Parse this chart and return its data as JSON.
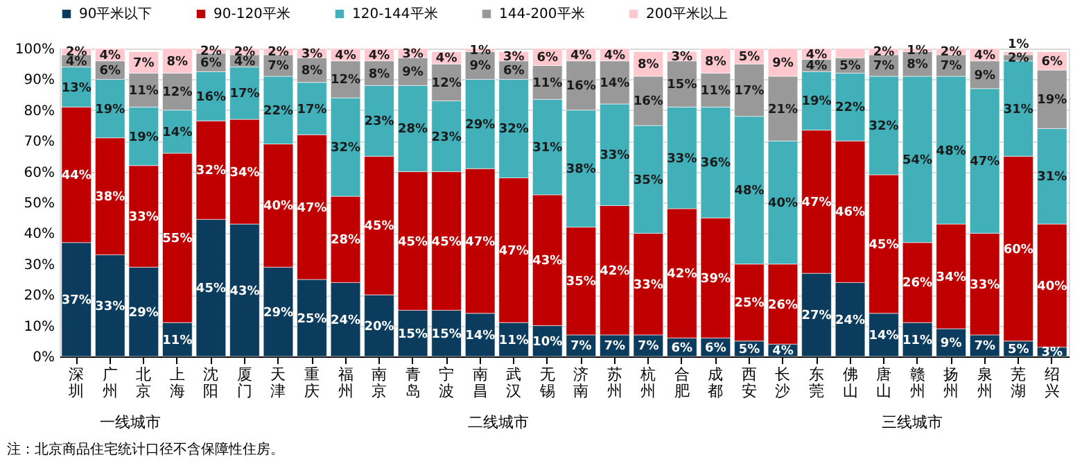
{
  "chart_data": {
    "type": "bar",
    "stacked": true,
    "legend": "top",
    "grid": "y",
    "categories": [
      "深圳",
      "广州",
      "北京",
      "上海",
      "沈阳",
      "厦门",
      "天津",
      "重庆",
      "福州",
      "南京",
      "青岛",
      "宁波",
      "南昌",
      "武汉",
      "无锡",
      "济南",
      "苏州",
      "杭州",
      "合肥",
      "成都",
      "西安",
      "长沙",
      "东莞",
      "佛山",
      "唐山",
      "赣州",
      "扬州",
      "泉州",
      "芜湖",
      "绍兴"
    ],
    "ylim": [
      0,
      100
    ],
    "yticks": [
      {
        "value": 0,
        "label": "0%"
      },
      {
        "value": 10,
        "label": "10%"
      },
      {
        "value": 20,
        "label": "20%"
      },
      {
        "value": 30,
        "label": "30%"
      },
      {
        "value": 40,
        "label": "40%"
      },
      {
        "value": 50,
        "label": "50%"
      },
      {
        "value": 60,
        "label": "60%"
      },
      {
        "value": 70,
        "label": "70%"
      },
      {
        "value": 80,
        "label": "80%"
      },
      {
        "value": 90,
        "label": "90%"
      },
      {
        "value": 100,
        "label": "100%"
      }
    ],
    "series": [
      {
        "name": "90平米以下",
        "color": "#0b3c5d",
        "values": [
          37,
          33,
          29,
          11,
          44.5,
          43,
          29,
          25,
          24,
          20,
          15,
          15,
          14,
          11,
          10,
          7,
          7,
          7,
          6,
          6,
          5,
          4,
          27,
          24,
          14,
          11,
          9,
          7,
          5,
          3
        ],
        "value_labels": [
          "37%",
          "33%",
          "29%",
          "11%",
          "45%",
          "43%",
          "29%",
          "25%",
          "24%",
          "20%",
          "15%",
          "15%",
          "14%",
          "11%",
          "10%",
          "7%",
          "7%",
          "7%",
          "6%",
          "6%",
          "5%",
          "4%",
          "27%",
          "24%",
          "14%",
          "11%",
          "9%",
          "7%",
          "5%",
          "3%"
        ]
      },
      {
        "name": "90-120平米",
        "color": "#c00000",
        "values": [
          44,
          38,
          33,
          55,
          32,
          34,
          40,
          47,
          28,
          45,
          45,
          45,
          47,
          47,
          42.5,
          35,
          42,
          33,
          42,
          39,
          25,
          26,
          46.5,
          46,
          45,
          26,
          34,
          33,
          60,
          40
        ],
        "value_labels": [
          "44%",
          "38%",
          "33%",
          "55%",
          "32%",
          "34%",
          "40%",
          "47%",
          "28%",
          "45%",
          "45%",
          "45%",
          "47%",
          "47%",
          "43%",
          "35%",
          "42%",
          "33%",
          "42%",
          "39%",
          "25%",
          "26%",
          "47%",
          "46%",
          "45%",
          "26%",
          "34%",
          "33%",
          "60%",
          "40%"
        ]
      },
      {
        "name": "120-144平米",
        "color": "#41b0b9",
        "values": [
          13,
          19,
          19,
          14,
          16,
          17,
          22,
          17,
          32,
          23,
          28,
          23,
          29,
          32,
          31,
          38,
          33,
          35,
          33,
          36,
          48,
          40,
          19,
          22,
          32,
          54,
          48,
          47,
          31,
          31
        ],
        "value_labels": [
          "13%",
          "19%",
          "19%",
          "14%",
          "16%",
          "17%",
          "22%",
          "17%",
          "32%",
          "23%",
          "28%",
          "23%",
          "29%",
          "32%",
          "31%",
          "38%",
          "33%",
          "35%",
          "33%",
          "36%",
          "48%",
          "40%",
          "19%",
          "22%",
          "32%",
          "54%",
          "48%",
          "47%",
          "31%",
          "31%"
        ]
      },
      {
        "name": "144-200平米",
        "color": "#999999",
        "values": [
          4,
          6,
          11,
          12,
          6,
          4,
          7,
          8,
          12,
          8,
          9,
          12,
          9,
          6,
          11,
          16,
          14,
          16,
          15,
          11,
          17,
          21,
          4,
          5,
          7,
          8,
          7,
          9,
          2,
          19
        ],
        "value_labels": [
          "4%",
          "6%",
          "11%",
          "12%",
          "6%",
          "4%",
          "7%",
          "8%",
          "12%",
          "8%",
          "9%",
          "12%",
          "9%",
          "6%",
          "11%",
          "16%",
          "14%",
          "16%",
          "15%",
          "11%",
          "17%",
          "21%",
          "4%",
          "5%",
          "7%",
          "8%",
          "7%",
          "9%",
          "2%",
          "19%"
        ]
      },
      {
        "name": "200平米以上",
        "color": "#ffc7ce",
        "values": [
          2,
          4,
          7,
          8,
          1.5,
          2,
          2,
          3,
          4,
          4,
          3,
          4,
          1,
          3,
          5.5,
          4,
          4,
          8,
          3,
          8,
          5,
          9,
          3.5,
          3,
          2,
          1,
          2,
          4,
          1,
          6
        ],
        "value_labels": [
          "2%",
          "4%",
          "7%",
          "8%",
          "2%",
          "2%",
          "2%",
          "3%",
          "4%",
          "4%",
          "3%",
          "4%",
          "1%",
          "3%",
          "6%",
          "4%",
          "4%",
          "8%",
          "3%",
          "8%",
          "5%",
          "9%",
          "4%",
          null,
          "2%",
          "1%",
          "2%",
          "4%",
          "1%",
          "6%"
        ]
      }
    ],
    "annotations": [
      "一线城市",
      "二线城市",
      "三线城市",
      "注：北京商品住宅统计口径不含保障性住房。"
    ]
  }
}
